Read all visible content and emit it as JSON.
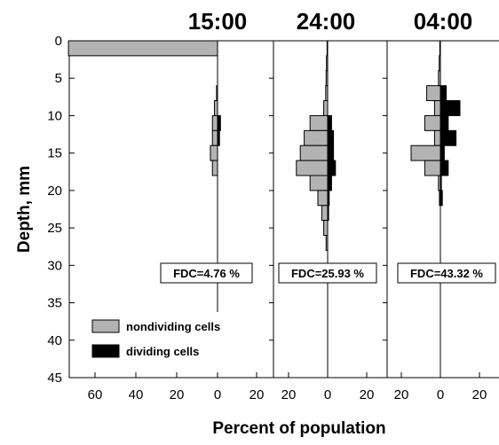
{
  "chart_data": {
    "type": "bar",
    "orientation": "horizontal-back-to-back",
    "ylabel": "Depth, mm",
    "xlabel": "Percent of population",
    "ylim": [
      0,
      45
    ],
    "y_ticks": [
      0,
      5,
      10,
      15,
      20,
      25,
      30,
      35,
      40,
      45
    ],
    "bin_height_mm": 2,
    "legend": {
      "placement": "bottom-left",
      "entries": [
        {
          "label": "nondividing cells",
          "color": "#b3b3b3"
        },
        {
          "label": "dividing cells",
          "color": "#000000"
        }
      ]
    },
    "panels": [
      {
        "title": "15:00",
        "fdc_label": "FDC=4.76 %",
        "x_ticks": [
          "60",
          "40",
          "20",
          "0",
          "20"
        ],
        "nondividing_xlim": [
          75,
          0
        ],
        "dividing_xlim": [
          0,
          24
        ],
        "depth_bins": [
          0,
          2,
          4,
          6,
          8,
          10,
          12,
          14,
          16,
          18,
          20
        ],
        "nondividing": [
          73,
          0,
          0,
          0.5,
          1.5,
          2.5,
          2.5,
          3.5,
          2.5,
          0,
          0
        ],
        "dividing": [
          0,
          0,
          0,
          0,
          0,
          1.5,
          1,
          0,
          0,
          0,
          0
        ]
      },
      {
        "title": "24:00",
        "fdc_label": "FDC=25.93 %",
        "x_ticks": [
          "20",
          "0",
          "20"
        ],
        "nondividing_xlim": [
          23,
          0
        ],
        "dividing_xlim": [
          0,
          22
        ],
        "depth_bins": [
          0,
          2,
          4,
          6,
          8,
          10,
          12,
          14,
          16,
          18,
          20,
          22,
          24,
          26
        ],
        "nondividing": [
          0.3,
          0.6,
          0.8,
          1,
          2,
          9,
          12,
          14,
          16,
          9,
          5,
          3,
          2,
          0.8
        ],
        "dividing": [
          0,
          0,
          0,
          0,
          0,
          2,
          3,
          3,
          4,
          2,
          0.8,
          0.5,
          0,
          0
        ]
      },
      {
        "title": "04:00",
        "fdc_label": "FDC=43.32 %",
        "x_ticks": [
          "20",
          "0",
          "20"
        ],
        "nondividing_xlim": [
          23,
          0
        ],
        "dividing_xlim": [
          0,
          22
        ],
        "depth_bins": [
          0,
          2,
          4,
          6,
          8,
          10,
          12,
          14,
          16,
          18,
          20
        ],
        "nondividing": [
          0.3,
          0.6,
          1,
          7,
          3,
          8,
          3,
          15,
          8,
          1,
          0.5
        ],
        "dividing": [
          0,
          0,
          0,
          3,
          10,
          4,
          8,
          2,
          4,
          0.5,
          1
        ]
      }
    ]
  }
}
